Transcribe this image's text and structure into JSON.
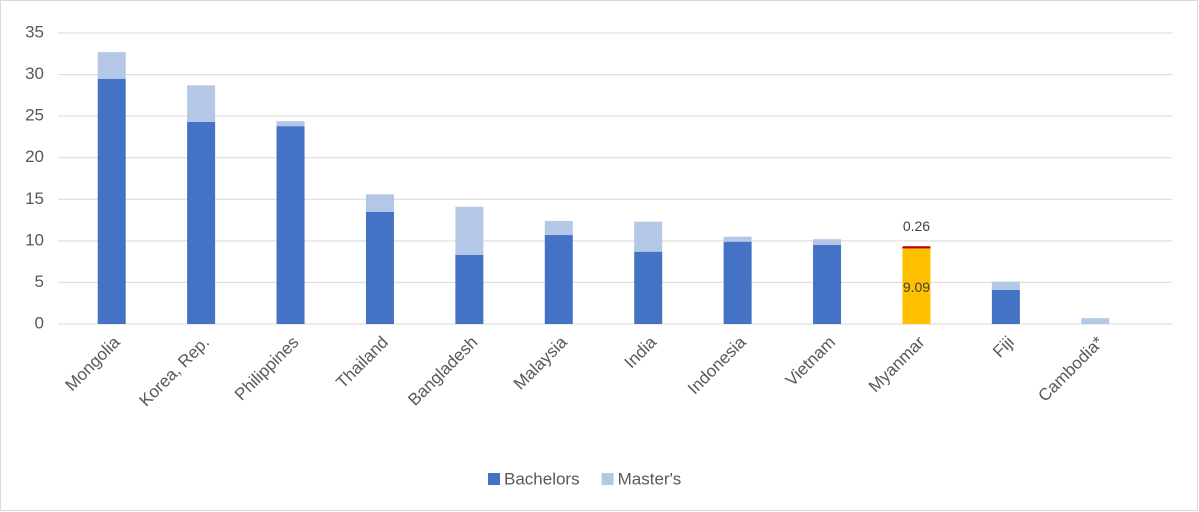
{
  "chart_data": {
    "type": "stacked-bar",
    "categories": [
      "Mongolia",
      "Korea, Rep.",
      "Philippines",
      "Thailand",
      "Bangladesh",
      "Malaysia",
      "India",
      "Indonesia",
      "Vietnam",
      "Myanmar",
      "Fiji",
      "Cambodia*"
    ],
    "series": [
      {
        "name": "Bachelors",
        "color": "#4472c4",
        "colors": [
          "#4472c4",
          "#4472c4",
          "#4472c4",
          "#4472c4",
          "#4472c4",
          "#4472c4",
          "#4472c4",
          "#4472c4",
          "#4472c4",
          "#ffc000",
          "#4472c4",
          "#4472c4"
        ],
        "values": [
          29.5,
          24.3,
          23.8,
          13.5,
          8.3,
          10.7,
          8.7,
          9.9,
          9.5,
          9.09,
          4.1,
          0
        ],
        "data_labels": [
          false,
          false,
          false,
          false,
          false,
          false,
          false,
          false,
          false,
          true,
          false,
          false
        ]
      },
      {
        "name": "Master's",
        "color": "#b4c7e7",
        "colors": [
          "#b4c7e7",
          "#b4c7e7",
          "#b4c7e7",
          "#b4c7e7",
          "#b4c7e7",
          "#b4c7e7",
          "#b4c7e7",
          "#b4c7e7",
          "#b4c7e7",
          "#c00000",
          "#b4c7e7",
          "#b4c7e7"
        ],
        "values": [
          3.2,
          4.4,
          0.6,
          2.1,
          5.8,
          1.7,
          3.6,
          0.6,
          0.7,
          0.26,
          1.0,
          0.7
        ],
        "data_labels": [
          false,
          false,
          false,
          false,
          false,
          false,
          false,
          false,
          false,
          true,
          false,
          false
        ]
      }
    ],
    "ylim": [
      0,
      35
    ],
    "yticks": [
      0,
      5,
      10,
      15,
      20,
      25,
      30,
      35
    ],
    "grid": true,
    "legend": "bottom"
  }
}
